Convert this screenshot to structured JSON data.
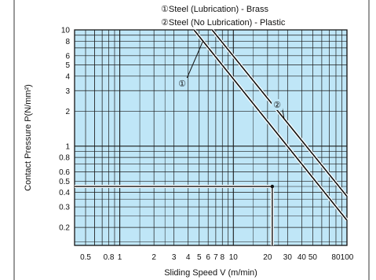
{
  "chart_data": {
    "type": "line",
    "title": "",
    "title_fragment": "",
    "xlabel": "Sliding Speed V (m/min)",
    "ylabel": "Contact Pressure P(N/mm²)",
    "x_scale": "log",
    "y_scale": "log",
    "xlim": [
      0.4,
      100
    ],
    "ylim": [
      0.14,
      10
    ],
    "x_tick_labels": [
      "0.5",
      "0.8",
      "1",
      "2",
      "3",
      "4",
      "5",
      "6",
      "7",
      "8",
      "10",
      "20",
      "30",
      "40",
      "50",
      "80",
      "100"
    ],
    "x_tick_values": [
      0.5,
      0.8,
      1,
      2,
      3,
      4,
      5,
      6,
      7,
      8,
      10,
      20,
      30,
      40,
      50,
      80,
      100
    ],
    "y_tick_labels": [
      "10",
      "8",
      "6",
      "5",
      "4",
      "3",
      "2",
      "1",
      "0.8",
      "0.6",
      "0.5",
      "0.4",
      "0.3",
      "0.2"
    ],
    "y_tick_values": [
      10,
      8,
      6,
      5,
      4,
      3,
      2,
      1,
      0.8,
      0.6,
      0.5,
      0.4,
      0.3,
      0.2
    ],
    "grid": true,
    "background_color": "#bfe6f7",
    "grid_color": "#1a1a1a",
    "line_color": "#111111",
    "legend": [
      "①Steel (Lubrication) - Brass",
      "②Steel (No Lubrication) - Plastic"
    ],
    "series": [
      {
        "marker": "①",
        "x": [
          4.5,
          100
        ],
        "y": [
          10,
          0.23
        ]
      },
      {
        "marker": "②",
        "x": [
          6.5,
          100
        ],
        "y": [
          10,
          0.37
        ]
      }
    ],
    "reference_point": {
      "x": 22,
      "y": 0.45
    }
  }
}
